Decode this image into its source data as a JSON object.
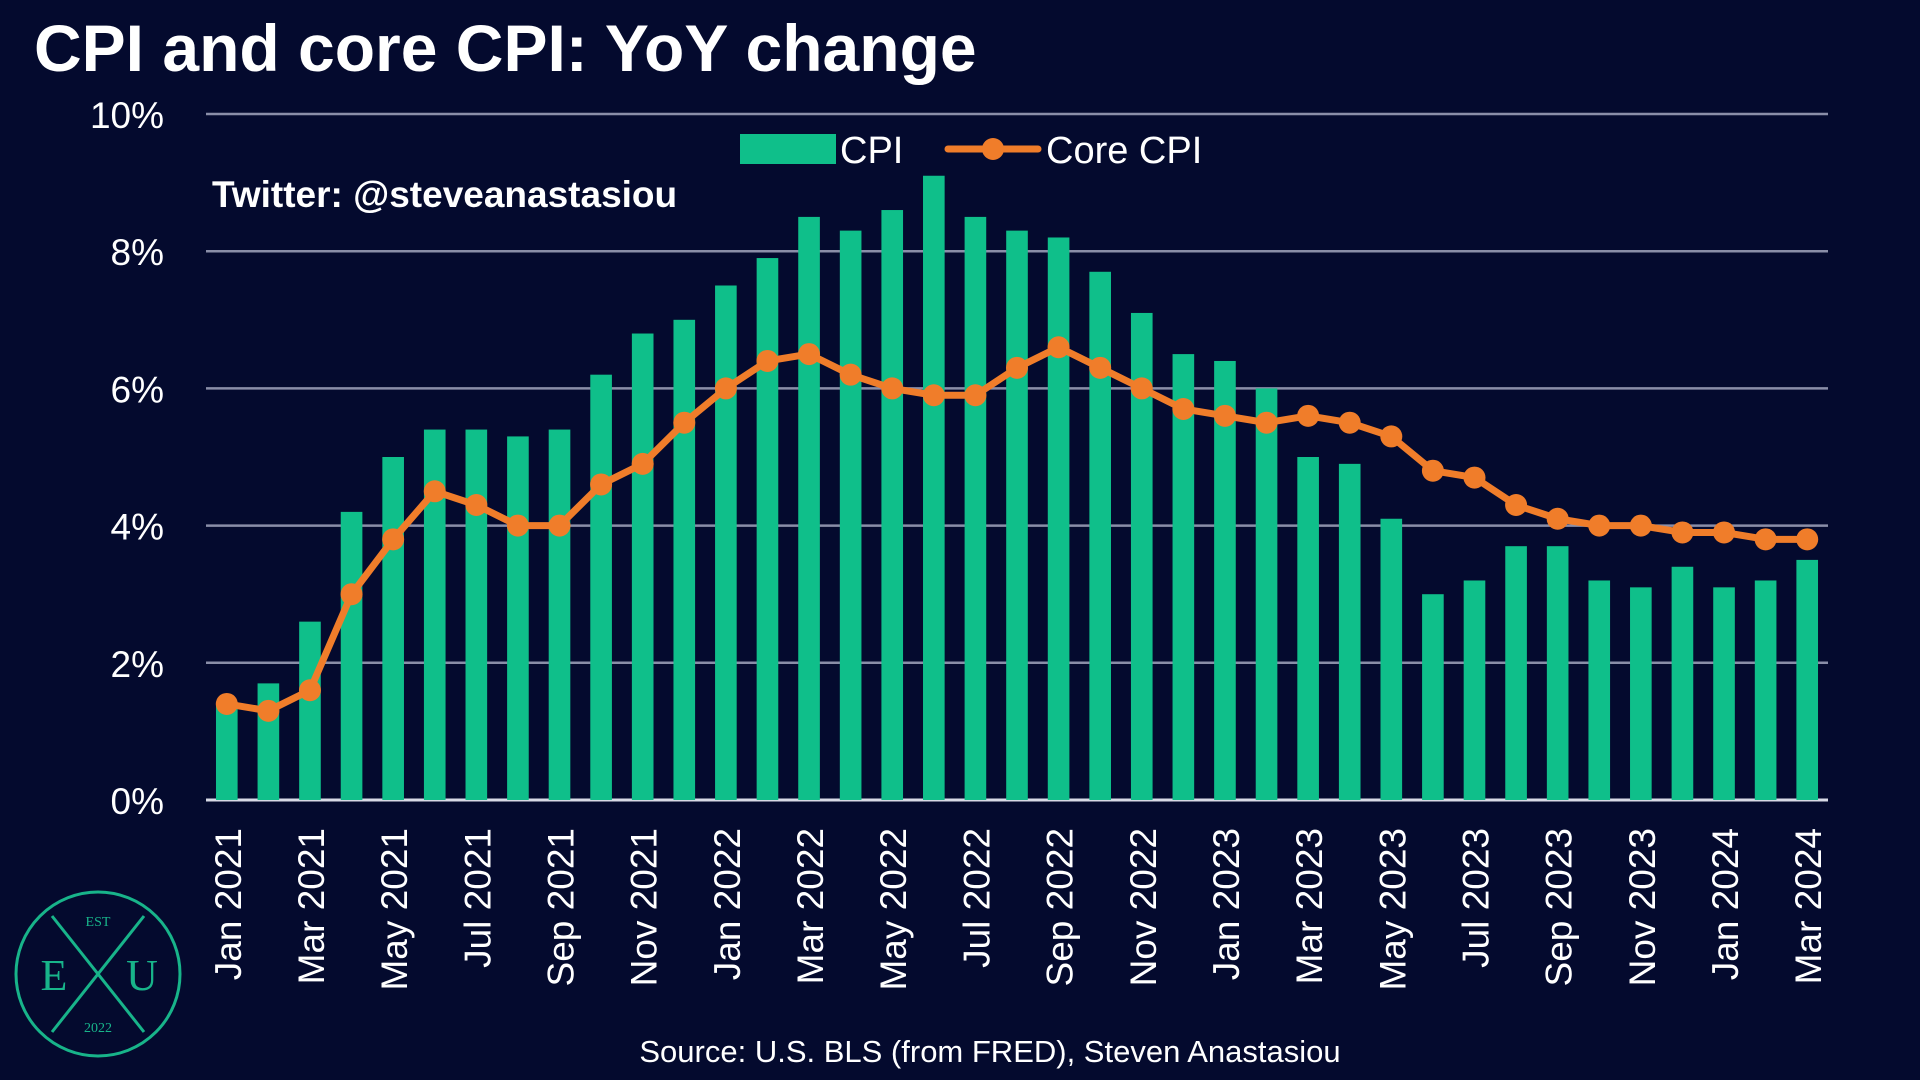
{
  "title": "CPI and core CPI: YoY change",
  "watermark_text": "Twitter: @steveanastasiou",
  "source": "Source: U.S. BLS (from FRED), Steven Anastasiou",
  "logo": {
    "top": "EST",
    "left": "E",
    "right": "U",
    "bottom": "2022"
  },
  "colors": {
    "background": "#040a2e",
    "cpi_bar": "#0fbf8a",
    "core_line": "#f07d2a",
    "grid": "#8a8ea8",
    "text": "#ffffff",
    "logo": "#18b48a"
  },
  "chart_data": {
    "type": "bar",
    "title": "CPI and core CPI: YoY change",
    "xlabel": "",
    "ylabel": "",
    "ylim": [
      0,
      10
    ],
    "yticks": [
      0,
      2,
      4,
      6,
      8,
      10
    ],
    "ytick_labels": [
      "0%",
      "2%",
      "4%",
      "6%",
      "8%",
      "10%"
    ],
    "grid": true,
    "legend_position": "top-center",
    "categories": [
      "Jan 2021",
      "Feb 2021",
      "Mar 2021",
      "Apr 2021",
      "May 2021",
      "Jun 2021",
      "Jul 2021",
      "Aug 2021",
      "Sep 2021",
      "Oct 2021",
      "Nov 2021",
      "Dec 2021",
      "Jan 2022",
      "Feb 2022",
      "Mar 2022",
      "Apr 2022",
      "May 2022",
      "Jun 2022",
      "Jul 2022",
      "Aug 2022",
      "Sep 2022",
      "Oct 2022",
      "Nov 2022",
      "Dec 2022",
      "Jan 2023",
      "Feb 2023",
      "Mar 2023",
      "Apr 2023",
      "May 2023",
      "Jun 2023",
      "Jul 2023",
      "Aug 2023",
      "Sep 2023",
      "Oct 2023",
      "Nov 2023",
      "Dec 2023",
      "Jan 2024",
      "Feb 2024",
      "Mar 2024"
    ],
    "visible_tick_labels": [
      "Jan 2021",
      "Mar 2021",
      "May 2021",
      "Jul 2021",
      "Sep 2021",
      "Nov 2021",
      "Jan 2022",
      "Mar 2022",
      "May 2022",
      "Jul 2022",
      "Sep 2022",
      "Nov 2022",
      "Jan 2023",
      "Mar 2023",
      "May 2023",
      "Jul 2023",
      "Sep 2023",
      "Nov 2023",
      "Jan 2024",
      "Mar 2024"
    ],
    "series": [
      {
        "name": "CPI",
        "kind": "bar",
        "values": [
          1.4,
          1.7,
          2.6,
          4.2,
          5.0,
          5.4,
          5.4,
          5.3,
          5.4,
          6.2,
          6.8,
          7.0,
          7.5,
          7.9,
          8.5,
          8.3,
          8.6,
          9.1,
          8.5,
          8.3,
          8.2,
          7.7,
          7.1,
          6.5,
          6.4,
          6.0,
          5.0,
          4.9,
          4.1,
          3.0,
          3.2,
          3.7,
          3.7,
          3.2,
          3.1,
          3.4,
          3.1,
          3.2,
          3.5
        ]
      },
      {
        "name": "Core CPI",
        "kind": "line",
        "values": [
          1.4,
          1.3,
          1.6,
          3.0,
          3.8,
          4.5,
          4.3,
          4.0,
          4.0,
          4.6,
          4.9,
          5.5,
          6.0,
          6.4,
          6.5,
          6.2,
          6.0,
          5.9,
          5.9,
          6.3,
          6.6,
          6.3,
          6.0,
          5.7,
          5.6,
          5.5,
          5.6,
          5.5,
          5.3,
          4.8,
          4.7,
          4.3,
          4.1,
          4.0,
          4.0,
          3.9,
          3.9,
          3.8,
          3.8
        ]
      }
    ]
  }
}
